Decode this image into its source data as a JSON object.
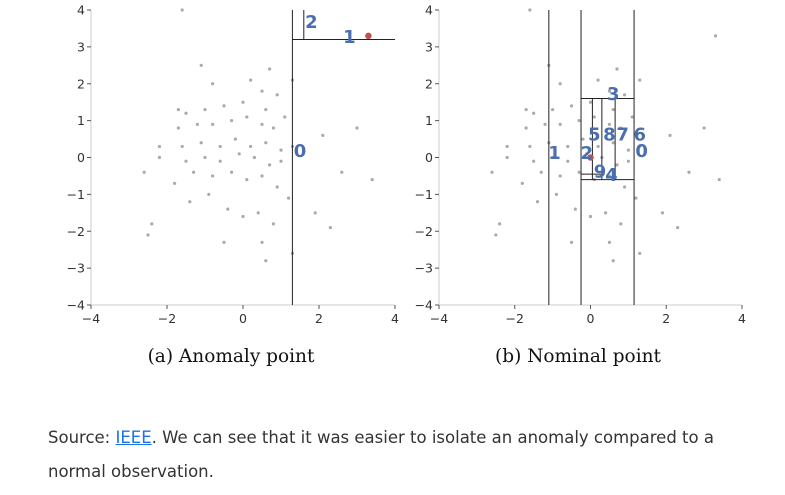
{
  "chart_data": [
    {
      "type": "scatter",
      "caption": "(a) Anomaly point",
      "xlim": [
        -4,
        4
      ],
      "ylim": [
        -4,
        4
      ],
      "x_ticks": [
        -4,
        -2,
        0,
        2,
        4
      ],
      "y_ticks": [
        4,
        3,
        2,
        1,
        0,
        -1,
        -2,
        -3,
        -4
      ],
      "grid": false,
      "point_color": "#aaaaaa",
      "highlight_color": "#c0504d",
      "highlight_point": [
        3.3,
        3.3
      ],
      "background_points": [
        [
          -1.6,
          4.0
        ],
        [
          3.3,
          3.3
        ],
        [
          -1.1,
          2.5
        ],
        [
          0.7,
          2.4
        ],
        [
          -0.8,
          2.0
        ],
        [
          0.2,
          2.1
        ],
        [
          1.3,
          2.1
        ],
        [
          0.5,
          1.8
        ],
        [
          0.9,
          1.7
        ],
        [
          -1.7,
          1.3
        ],
        [
          -1.5,
          1.2
        ],
        [
          -1.0,
          1.3
        ],
        [
          -0.5,
          1.4
        ],
        [
          0.0,
          1.5
        ],
        [
          0.6,
          1.3
        ],
        [
          1.1,
          1.1
        ],
        [
          -1.7,
          0.8
        ],
        [
          -1.2,
          0.9
        ],
        [
          -0.8,
          0.9
        ],
        [
          -0.3,
          1.0
        ],
        [
          0.1,
          1.1
        ],
        [
          0.5,
          0.9
        ],
        [
          0.8,
          0.8
        ],
        [
          2.1,
          0.6
        ],
        [
          3.0,
          0.8
        ],
        [
          -2.2,
          0.3
        ],
        [
          -1.6,
          0.3
        ],
        [
          -1.1,
          0.4
        ],
        [
          -0.6,
          0.3
        ],
        [
          -0.2,
          0.5
        ],
        [
          0.2,
          0.3
        ],
        [
          0.6,
          0.4
        ],
        [
          1.0,
          0.2
        ],
        [
          1.3,
          0.3
        ],
        [
          -2.2,
          0.0
        ],
        [
          -1.5,
          -0.1
        ],
        [
          -1.0,
          0.0
        ],
        [
          -0.6,
          -0.1
        ],
        [
          -0.1,
          0.1
        ],
        [
          0.3,
          0.0
        ],
        [
          0.7,
          -0.2
        ],
        [
          1.0,
          -0.1
        ],
        [
          -2.6,
          -0.4
        ],
        [
          -1.8,
          -0.7
        ],
        [
          -1.3,
          -0.4
        ],
        [
          -0.8,
          -0.5
        ],
        [
          -0.3,
          -0.4
        ],
        [
          0.1,
          -0.6
        ],
        [
          0.5,
          -0.5
        ],
        [
          0.9,
          -0.8
        ],
        [
          1.2,
          -1.1
        ],
        [
          2.6,
          -0.4
        ],
        [
          3.4,
          -0.6
        ],
        [
          -1.4,
          -1.2
        ],
        [
          -0.9,
          -1.0
        ],
        [
          -0.4,
          -1.4
        ],
        [
          0.0,
          -1.6
        ],
        [
          0.4,
          -1.5
        ],
        [
          0.8,
          -1.8
        ],
        [
          1.9,
          -1.5
        ],
        [
          2.3,
          -1.9
        ],
        [
          -2.4,
          -1.8
        ],
        [
          -2.5,
          -2.1
        ],
        [
          -0.5,
          -2.3
        ],
        [
          0.5,
          -2.3
        ],
        [
          0.6,
          -2.8
        ],
        [
          1.3,
          -2.6
        ]
      ],
      "split_lines": [
        {
          "orientation": "vertical",
          "value": 1.3,
          "from": -4,
          "to": 4
        },
        {
          "orientation": "horizontal",
          "value": 3.2,
          "from": 1.3,
          "to": 4
        },
        {
          "orientation": "vertical",
          "value": 1.6,
          "from": 3.2,
          "to": 4
        }
      ],
      "split_labels": [
        {
          "text": "0",
          "x": 1.5,
          "y": 0.2
        },
        {
          "text": "1",
          "x": 2.8,
          "y": 3.3
        },
        {
          "text": "2",
          "x": 1.8,
          "y": 3.7
        }
      ]
    },
    {
      "type": "scatter",
      "caption": "(b) Nominal point",
      "xlim": [
        -4,
        4
      ],
      "ylim": [
        -4,
        4
      ],
      "x_ticks": [
        -4,
        -2,
        0,
        2,
        4
      ],
      "y_ticks": [
        4,
        3,
        2,
        1,
        0,
        -1,
        -2,
        -3,
        -4
      ],
      "grid": false,
      "point_color": "#aaaaaa",
      "highlight_color": "#c0504d",
      "highlight_point": [
        0.0,
        0.0
      ],
      "background_points": [
        [
          -1.6,
          4.0
        ],
        [
          3.3,
          3.3
        ],
        [
          -1.1,
          2.5
        ],
        [
          0.7,
          2.4
        ],
        [
          -0.8,
          2.0
        ],
        [
          0.2,
          2.1
        ],
        [
          1.3,
          2.1
        ],
        [
          0.5,
          1.8
        ],
        [
          0.9,
          1.7
        ],
        [
          -1.7,
          1.3
        ],
        [
          -1.5,
          1.2
        ],
        [
          -1.0,
          1.3
        ],
        [
          -0.5,
          1.4
        ],
        [
          0.0,
          1.5
        ],
        [
          0.6,
          1.3
        ],
        [
          1.1,
          1.1
        ],
        [
          -1.7,
          0.8
        ],
        [
          -1.2,
          0.9
        ],
        [
          -0.8,
          0.9
        ],
        [
          -0.3,
          1.0
        ],
        [
          0.1,
          1.1
        ],
        [
          0.5,
          0.9
        ],
        [
          0.8,
          0.8
        ],
        [
          2.1,
          0.6
        ],
        [
          3.0,
          0.8
        ],
        [
          -2.2,
          0.3
        ],
        [
          -1.6,
          0.3
        ],
        [
          -1.1,
          0.4
        ],
        [
          -0.6,
          0.3
        ],
        [
          -0.2,
          0.5
        ],
        [
          0.2,
          0.3
        ],
        [
          0.6,
          0.4
        ],
        [
          1.0,
          0.2
        ],
        [
          1.3,
          0.3
        ],
        [
          -2.2,
          0.0
        ],
        [
          -1.5,
          -0.1
        ],
        [
          -1.0,
          0.0
        ],
        [
          -0.6,
          -0.1
        ],
        [
          -0.1,
          0.1
        ],
        [
          0.3,
          0.0
        ],
        [
          0.7,
          -0.2
        ],
        [
          1.0,
          -0.1
        ],
        [
          -2.6,
          -0.4
        ],
        [
          -1.8,
          -0.7
        ],
        [
          -1.3,
          -0.4
        ],
        [
          -0.8,
          -0.5
        ],
        [
          -0.3,
          -0.4
        ],
        [
          0.1,
          -0.6
        ],
        [
          0.5,
          -0.5
        ],
        [
          0.9,
          -0.8
        ],
        [
          1.2,
          -1.1
        ],
        [
          2.6,
          -0.4
        ],
        [
          3.4,
          -0.6
        ],
        [
          -1.4,
          -1.2
        ],
        [
          -0.9,
          -1.0
        ],
        [
          -0.4,
          -1.4
        ],
        [
          0.0,
          -1.6
        ],
        [
          0.4,
          -1.5
        ],
        [
          0.8,
          -1.8
        ],
        [
          1.9,
          -1.5
        ],
        [
          2.3,
          -1.9
        ],
        [
          -2.4,
          -1.8
        ],
        [
          -2.5,
          -2.1
        ],
        [
          -0.5,
          -2.3
        ],
        [
          0.5,
          -2.3
        ],
        [
          0.6,
          -2.8
        ],
        [
          1.3,
          -2.6
        ]
      ],
      "split_lines": [
        {
          "orientation": "vertical",
          "value": -1.1,
          "from": -4,
          "to": 4
        },
        {
          "orientation": "vertical",
          "value": -0.25,
          "from": -4,
          "to": 4
        },
        {
          "orientation": "vertical",
          "value": 1.15,
          "from": -4,
          "to": 4
        },
        {
          "orientation": "horizontal",
          "value": 1.6,
          "from": -0.25,
          "to": 1.15
        },
        {
          "orientation": "horizontal",
          "value": -0.6,
          "from": -0.25,
          "to": 1.15
        },
        {
          "orientation": "vertical",
          "value": 0.3,
          "from": -0.6,
          "to": 1.6
        },
        {
          "orientation": "vertical",
          "value": 0.65,
          "from": -0.6,
          "to": 1.6
        },
        {
          "orientation": "vertical",
          "value": 0.05,
          "from": -0.6,
          "to": 1.6
        },
        {
          "orientation": "horizontal",
          "value": -0.45,
          "from": -0.25,
          "to": 0.3
        }
      ],
      "split_labels": [
        {
          "text": "0",
          "x": 1.35,
          "y": 0.2
        },
        {
          "text": "1",
          "x": -0.95,
          "y": 0.15
        },
        {
          "text": "2",
          "x": -0.1,
          "y": 0.15
        },
        {
          "text": "3",
          "x": 0.6,
          "y": 1.75
        },
        {
          "text": "4",
          "x": 0.55,
          "y": -0.45
        },
        {
          "text": "5",
          "x": 0.1,
          "y": 0.65
        },
        {
          "text": "6",
          "x": 1.3,
          "y": 0.65
        },
        {
          "text": "7",
          "x": 0.85,
          "y": 0.65
        },
        {
          "text": "8",
          "x": 0.5,
          "y": 0.65
        },
        {
          "text": "9",
          "x": 0.25,
          "y": -0.35
        }
      ]
    }
  ],
  "source": {
    "prefix": "Source: ",
    "link_text": "IEEE",
    "suffix": ". We can see that it was easier to isolate an anomaly compared to a normal observation."
  }
}
